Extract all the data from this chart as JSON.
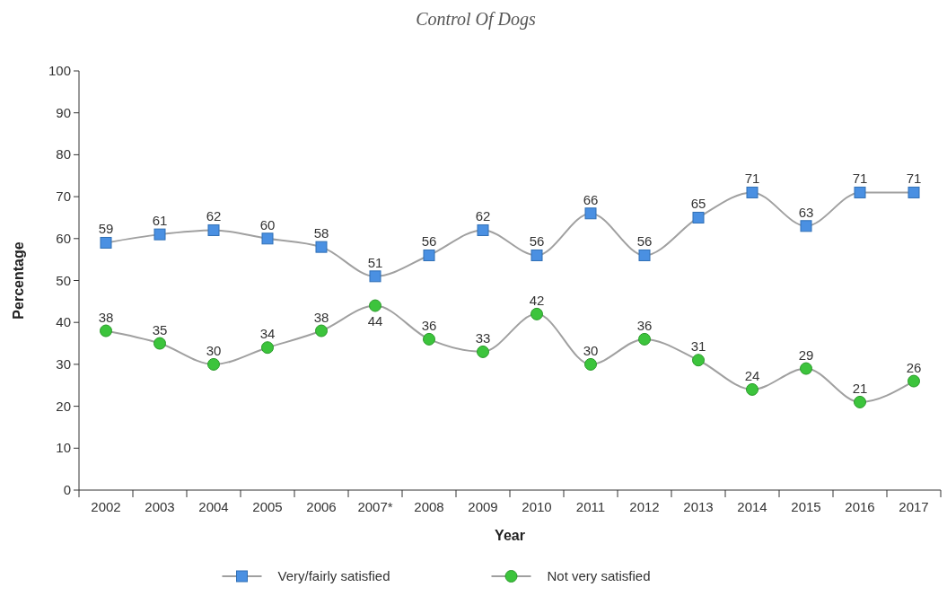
{
  "chart_data": {
    "type": "line",
    "title": "Control Of Dogs",
    "xlabel": "Year",
    "ylabel": "Percentage",
    "categories": [
      "2002",
      "2003",
      "2004",
      "2005",
      "2006",
      "2007*",
      "2008",
      "2009",
      "2010",
      "2011",
      "2012",
      "2013",
      "2014",
      "2015",
      "2016",
      "2017"
    ],
    "series": [
      {
        "name": "Very/fairly satisfied",
        "color": "#4a90e2",
        "marker": "square",
        "values": [
          59,
          61,
          62,
          60,
          58,
          51,
          56,
          62,
          56,
          66,
          56,
          65,
          71,
          63,
          71,
          71
        ]
      },
      {
        "name": "Not very satisfied",
        "color": "#3cc43c",
        "marker": "circle",
        "values": [
          38,
          35,
          30,
          34,
          38,
          44,
          36,
          33,
          42,
          30,
          36,
          31,
          24,
          29,
          21,
          26
        ]
      }
    ],
    "ylim": [
      0,
      100
    ],
    "yticks": [
      0,
      10,
      20,
      30,
      40,
      50,
      60,
      70,
      80,
      90,
      100
    ],
    "grid": false,
    "legend": "bottom",
    "data_labels": true
  }
}
